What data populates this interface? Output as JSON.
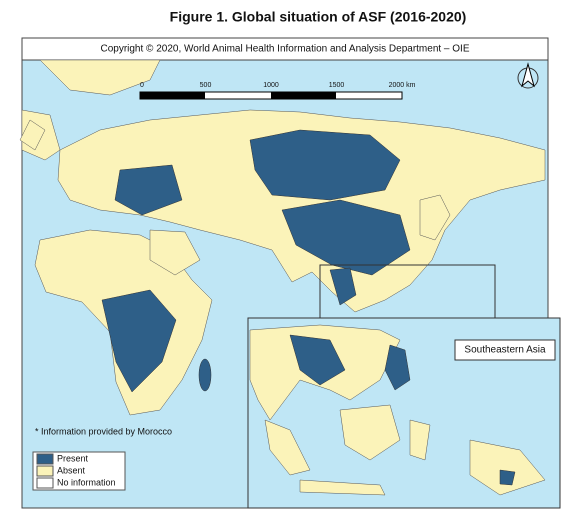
{
  "title": "Figure 1. Global situation of ASF (2016-2020)",
  "copyright": "Copyright © 2020, World Animal Health Information and Analysis Department – OIE",
  "scale_bar": [
    "0",
    "500",
    "1000",
    "1500",
    "2000 km"
  ],
  "inset_label": "Southeastern Asia",
  "note": "* Information provided by Morocco",
  "legend": [
    {
      "name": "Present",
      "color": "#2e5f88"
    },
    {
      "name": "Absent",
      "color": "#fbf3b9"
    },
    {
      "name": "No information",
      "color": "#ffffff"
    }
  ]
}
